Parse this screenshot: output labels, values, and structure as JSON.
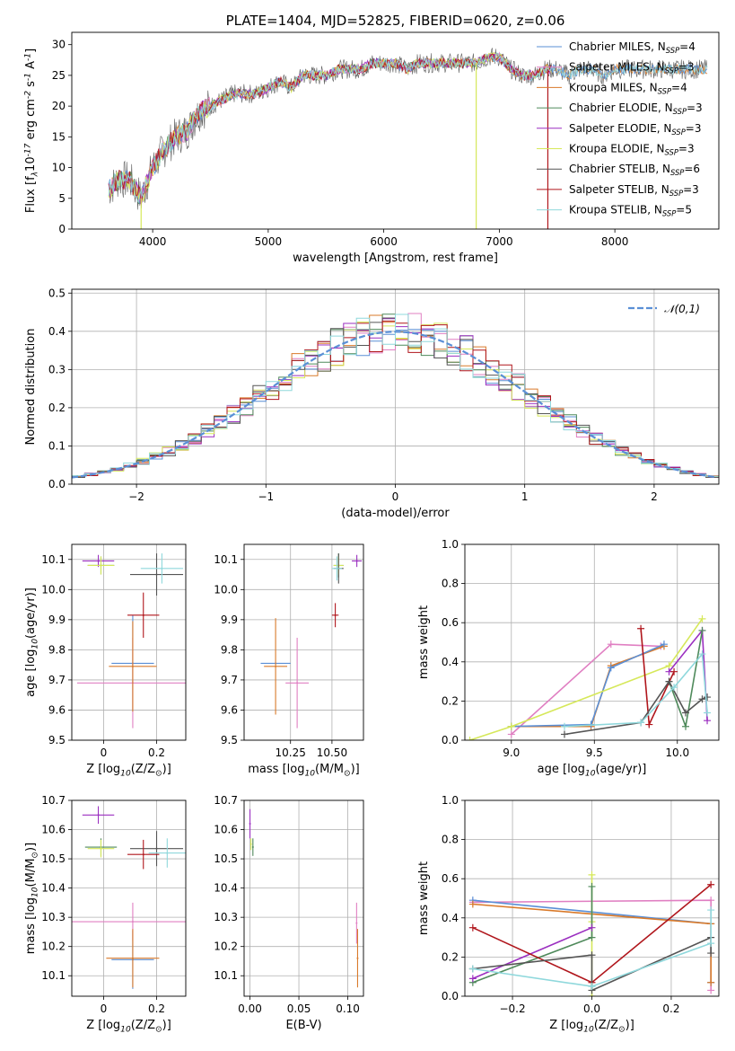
{
  "colors": {
    "Chabrier MILES": "#5a8fd6",
    "Salpeter MILES": "#e07fc2",
    "Kroupa MILES": "#d97a2a",
    "Chabrier ELODIE": "#4f8a5b",
    "Salpeter ELODIE": "#9b2fc0",
    "Kroupa ELODIE": "#d6e85a",
    "Chabrier STELIB": "#555555",
    "Salpeter STELIB": "#b0161c",
    "Kroupa STELIB": "#8fd8dc",
    "gauss": "#5a8fd6"
  },
  "chart_data": [
    {
      "id": "spectrum",
      "type": "line",
      "title": "PLATE=1404, MJD=52825, FIBERID=0620, z=0.06",
      "xlabel": "wavelength [Angstrom, rest frame]",
      "ylabel": "Flux [f$_\\lambda$10$^{-17}$ erg cm$^{-2}$ s$^{-1}$ A$^{-1}$]",
      "xlim": [
        3300,
        8900
      ],
      "ylim": [
        0,
        32
      ],
      "xticks": [
        4000,
        5000,
        6000,
        7000,
        8000
      ],
      "yticks": [
        0,
        5,
        10,
        15,
        20,
        25,
        30
      ],
      "grid": false,
      "legend_position": "right",
      "series": [
        {
          "name": "Chabrier MILES, N$_{SSP}$=4",
          "color_key": "Chabrier MILES"
        },
        {
          "name": "Salpeter MILES, N$_{SSP}$=3",
          "color_key": "Salpeter MILES"
        },
        {
          "name": "Kroupa MILES, N$_{SSP}$=4",
          "color_key": "Kroupa MILES"
        },
        {
          "name": "Chabrier ELODIE, N$_{SSP}$=3",
          "color_key": "Chabrier ELODIE"
        },
        {
          "name": "Salpeter ELODIE, N$_{SSP}$=3",
          "color_key": "Salpeter ELODIE"
        },
        {
          "name": "Kroupa ELODIE, N$_{SSP}$=3",
          "color_key": "Kroupa ELODIE"
        },
        {
          "name": "Chabrier STELIB, N$_{SSP}$=6",
          "color_key": "Chabrier STELIB"
        },
        {
          "name": "Salpeter STELIB, N$_{SSP}$=3",
          "color_key": "Salpeter STELIB"
        },
        {
          "name": "Kroupa STELIB, N$_{SSP}$=5",
          "color_key": "Kroupa STELIB"
        }
      ],
      "continuum": [
        [
          3600,
          6
        ],
        [
          3700,
          8
        ],
        [
          3800,
          8
        ],
        [
          3900,
          5
        ],
        [
          4000,
          10
        ],
        [
          4100,
          13
        ],
        [
          4200,
          15
        ],
        [
          4300,
          16
        ],
        [
          4400,
          19
        ],
        [
          4500,
          20
        ],
        [
          4600,
          21
        ],
        [
          4700,
          22
        ],
        [
          4800,
          22
        ],
        [
          4900,
          22
        ],
        [
          5000,
          23
        ],
        [
          5100,
          24
        ],
        [
          5200,
          23
        ],
        [
          5300,
          25
        ],
        [
          5400,
          25
        ],
        [
          5500,
          25
        ],
        [
          5600,
          26
        ],
        [
          5700,
          26
        ],
        [
          5800,
          26
        ],
        [
          5900,
          27
        ],
        [
          6000,
          27
        ],
        [
          6100,
          27
        ],
        [
          6200,
          26
        ],
        [
          6300,
          27
        ],
        [
          6400,
          27
        ],
        [
          6500,
          27
        ],
        [
          6600,
          27
        ],
        [
          6700,
          27
        ],
        [
          6800,
          27
        ],
        [
          6900,
          28
        ],
        [
          7000,
          28
        ],
        [
          7100,
          26
        ],
        [
          7200,
          25
        ],
        [
          7300,
          25
        ],
        [
          7400,
          26
        ],
        [
          7500,
          26
        ],
        [
          7600,
          25
        ],
        [
          7700,
          26
        ],
        [
          7800,
          26
        ],
        [
          7900,
          25
        ],
        [
          8000,
          26
        ],
        [
          8100,
          26
        ],
        [
          8200,
          26
        ],
        [
          8300,
          26
        ],
        [
          8400,
          26
        ],
        [
          8500,
          26
        ],
        [
          8600,
          26
        ],
        [
          8700,
          26
        ],
        [
          8800,
          26
        ]
      ],
      "spikes": [
        {
          "x": 3900,
          "color_key": "Kroupa ELODIE"
        },
        {
          "x": 6800,
          "color_key": "Kroupa ELODIE"
        },
        {
          "x": 7420,
          "color_key": "Salpeter STELIB"
        }
      ]
    },
    {
      "id": "residuals",
      "type": "bar",
      "xlabel": "(data-model)/error",
      "ylabel": "Normed distribution",
      "xlim": [
        -2.5,
        2.5
      ],
      "ylim": [
        0,
        0.51
      ],
      "xticks": [
        -2,
        -1,
        0,
        1,
        2
      ],
      "yticks": [
        0.0,
        0.1,
        0.2,
        0.3,
        0.4,
        0.5
      ],
      "grid": true,
      "legend_position": "top-right",
      "legend": "$\\mathcal{N}(0,1)$",
      "bin_width": 0.1
    },
    {
      "id": "age_vs_Z",
      "type": "scatter",
      "xlabel": "Z [log$_{10}$(Z/Z$_\\odot$)]",
      "ylabel": "age  [log$_{10}$(age/yr)]",
      "xlim": [
        -0.12,
        0.31
      ],
      "ylim": [
        9.5,
        10.15
      ],
      "xticks": [
        0.0,
        0.2
      ],
      "yticks": [
        9.5,
        9.6,
        9.7,
        9.8,
        9.9,
        10.0,
        10.1
      ],
      "grid": true,
      "points": [
        {
          "model": "Chabrier MILES",
          "x": 0.11,
          "xerr": 0.08,
          "y": 9.755,
          "yerr": 0.16
        },
        {
          "model": "Salpeter MILES",
          "x": 0.11,
          "xerr": 0.21,
          "y": 9.69,
          "yerr": 0.15
        },
        {
          "model": "Kroupa MILES",
          "x": 0.11,
          "xerr": 0.09,
          "y": 9.745,
          "yerr": 0.15
        },
        {
          "model": "Chabrier ELODIE",
          "x": -0.01,
          "xerr": 0.05,
          "y": 10.08,
          "yerr": 0.03
        },
        {
          "model": "Salpeter ELODIE",
          "x": -0.02,
          "xerr": 0.06,
          "y": 10.095,
          "yerr": 0.02
        },
        {
          "model": "Kroupa ELODIE",
          "x": -0.01,
          "xerr": 0.05,
          "y": 10.08,
          "yerr": 0.03
        },
        {
          "model": "Chabrier STELIB",
          "x": 0.2,
          "xerr": 0.1,
          "y": 10.05,
          "yerr": 0.07
        },
        {
          "model": "Salpeter STELIB",
          "x": 0.15,
          "xerr": 0.06,
          "y": 9.915,
          "yerr": 0.075
        },
        {
          "model": "Kroupa STELIB",
          "x": 0.22,
          "xerr": 0.08,
          "y": 10.07,
          "yerr": 0.05
        }
      ]
    },
    {
      "id": "age_vs_mass",
      "type": "scatter",
      "xlabel": "mass [log$_{10}$(M/M$_\\odot$)]",
      "xlim": [
        9.97,
        10.69
      ],
      "ylim": [
        9.5,
        10.15
      ],
      "xticks": [
        10.25,
        10.5
      ],
      "xticklabels": [
        "10.25",
        "10.50"
      ],
      "yticks": [
        9.5,
        9.6,
        9.7,
        9.8,
        9.9,
        10.0,
        10.1
      ],
      "grid": true,
      "points": [
        {
          "model": "Chabrier MILES",
          "x": 10.16,
          "xerr": 0.09,
          "y": 9.755,
          "yerr": 0.0
        },
        {
          "model": "Salpeter MILES",
          "x": 10.29,
          "xerr": 0.07,
          "y": 9.69,
          "yerr": 0.15
        },
        {
          "model": "Kroupa MILES",
          "x": 10.16,
          "xerr": 0.07,
          "y": 9.745,
          "yerr": 0.16
        },
        {
          "model": "Chabrier ELODIE",
          "x": 10.54,
          "xerr": 0.03,
          "y": 10.08,
          "yerr": 0.04
        },
        {
          "model": "Salpeter ELODIE",
          "x": 10.65,
          "xerr": 0.03,
          "y": 10.095,
          "yerr": 0.02
        },
        {
          "model": "Kroupa ELODIE",
          "x": 10.54,
          "xerr": 0.03,
          "y": 10.08,
          "yerr": 0.03
        },
        {
          "model": "Chabrier STELIB",
          "x": 10.54,
          "xerr": 0.03,
          "y": 10.07,
          "yerr": 0.05
        },
        {
          "model": "Salpeter STELIB",
          "x": 10.52,
          "xerr": 0.02,
          "y": 9.915,
          "yerr": 0.04
        },
        {
          "model": "Kroupa STELIB",
          "x": 10.53,
          "xerr": 0.03,
          "y": 10.07,
          "yerr": 0.04
        }
      ]
    },
    {
      "id": "weight_vs_age",
      "type": "line",
      "xlabel": "age  [log$_{10}$(age/yr)]",
      "ylabel": "mass weight",
      "xlim": [
        8.72,
        10.25
      ],
      "ylim": [
        0,
        1.0
      ],
      "xticks": [
        9.0,
        9.5,
        10.0
      ],
      "xticklabels": [
        "9.0",
        "9.5",
        "10.0"
      ],
      "yticks": [
        0.0,
        0.2,
        0.4,
        0.6,
        0.8,
        1.0
      ],
      "grid": true,
      "series": [
        {
          "model": "Salpeter MILES",
          "x": [
            9.0,
            9.6,
            9.9
          ],
          "y": [
            0.03,
            0.49,
            0.48
          ]
        },
        {
          "model": "Kroupa MILES",
          "x": [
            9.0,
            9.48,
            9.6,
            9.92
          ],
          "y": [
            0.07,
            0.07,
            0.38,
            0.48
          ]
        },
        {
          "model": "Chabrier MILES",
          "x": [
            9.0,
            9.48,
            9.6,
            9.92
          ],
          "y": [
            0.07,
            0.08,
            0.37,
            0.49
          ]
        },
        {
          "model": "Kroupa ELODIE",
          "x": [
            8.75,
            9.0,
            9.95,
            10.15
          ],
          "y": [
            0.0,
            0.07,
            0.38,
            0.62
          ]
        },
        {
          "model": "Salpeter ELODIE",
          "x": [
            9.95,
            10.15,
            10.18
          ],
          "y": [
            0.35,
            0.56,
            0.1
          ]
        },
        {
          "model": "Chabrier ELODIE",
          "x": [
            9.95,
            10.05,
            10.15
          ],
          "y": [
            0.3,
            0.07,
            0.56
          ]
        },
        {
          "model": "Salpeter STELIB",
          "x": [
            9.78,
            9.83,
            9.98
          ],
          "y": [
            0.57,
            0.08,
            0.35
          ]
        },
        {
          "model": "Chabrier STELIB",
          "x": [
            9.32,
            9.78,
            9.95,
            10.05,
            10.15,
            10.18
          ],
          "y": [
            0.03,
            0.09,
            0.3,
            0.14,
            0.21,
            0.22
          ]
        },
        {
          "model": "Kroupa STELIB",
          "x": [
            9.32,
            9.78,
            9.98,
            10.15,
            10.18
          ],
          "y": [
            0.07,
            0.09,
            0.27,
            0.44,
            0.14
          ]
        }
      ]
    },
    {
      "id": "mass_vs_Z",
      "type": "scatter",
      "xlabel": "Z [log$_{10}$(Z/Z$_\\odot$)]",
      "ylabel": "mass [log$_{10}$(M/M$_\\odot$)]",
      "xlim": [
        -0.12,
        0.31
      ],
      "ylim": [
        10.03,
        10.7
      ],
      "xticks": [
        0.0,
        0.2
      ],
      "yticks": [
        10.1,
        10.2,
        10.3,
        10.4,
        10.5,
        10.6,
        10.7
      ],
      "grid": true,
      "points": [
        {
          "model": "Chabrier MILES",
          "x": 0.11,
          "xerr": 0.08,
          "y": 10.155,
          "yerr": 0.1
        },
        {
          "model": "Salpeter MILES",
          "x": 0.11,
          "xerr": 0.24,
          "y": 10.285,
          "yerr": 0.065
        },
        {
          "model": "Kroupa MILES",
          "x": 0.11,
          "xerr": 0.1,
          "y": 10.16,
          "yerr": 0.1
        },
        {
          "model": "Chabrier ELODIE",
          "x": -0.01,
          "xerr": 0.06,
          "y": 10.54,
          "yerr": 0.03
        },
        {
          "model": "Salpeter ELODIE",
          "x": -0.02,
          "xerr": 0.06,
          "y": 10.65,
          "yerr": 0.03
        },
        {
          "model": "Kroupa ELODIE",
          "x": -0.01,
          "xerr": 0.05,
          "y": 10.535,
          "yerr": 0.03
        },
        {
          "model": "Chabrier STELIB",
          "x": 0.2,
          "xerr": 0.1,
          "y": 10.535,
          "yerr": 0.06
        },
        {
          "model": "Salpeter STELIB",
          "x": 0.15,
          "xerr": 0.06,
          "y": 10.515,
          "yerr": 0.05
        },
        {
          "model": "Kroupa STELIB",
          "x": 0.24,
          "xerr": 0.07,
          "y": 10.52,
          "yerr": 0.05
        }
      ]
    },
    {
      "id": "mass_vs_EBV",
      "type": "scatter",
      "xlabel": "E(B-V)",
      "xlim": [
        -0.006,
        0.116
      ],
      "ylim": [
        10.03,
        10.7
      ],
      "xticks": [
        0.0,
        0.05,
        0.1
      ],
      "xticklabels": [
        "0.00",
        "0.05",
        "0.10"
      ],
      "yticks": [
        10.1,
        10.2,
        10.3,
        10.4,
        10.5,
        10.6,
        10.7
      ],
      "grid": true,
      "points": [
        {
          "model": "Salpeter ELODIE",
          "x": 0.0,
          "y": 10.62,
          "yerr": 0.05
        },
        {
          "model": "Chabrier ELODIE",
          "x": 0.003,
          "y": 10.54,
          "yerr": 0.03
        },
        {
          "model": "Kroupa ELODIE",
          "x": 0.001,
          "y": 10.55,
          "yerr": 0.02
        },
        {
          "model": "Salpeter MILES",
          "x": 0.109,
          "y": 10.28,
          "yerr": 0.07
        },
        {
          "model": "Kroupa MILES",
          "x": 0.11,
          "y": 10.16,
          "yerr": 0.1
        }
      ]
    },
    {
      "id": "weight_vs_Z",
      "type": "line",
      "xlabel": "Z [log$_{10}$(Z/Z$_\\odot$)]",
      "ylabel": "mass weight",
      "xlim": [
        -0.32,
        0.32
      ],
      "ylim": [
        0,
        1.0
      ],
      "xticks": [
        -0.2,
        0.0,
        0.2
      ],
      "xticklabels": [
        "−0.2",
        "0.0",
        "0.2"
      ],
      "yticks": [
        0.0,
        0.2,
        0.4,
        0.6,
        0.8,
        1.0
      ],
      "grid": true,
      "series": [
        {
          "model": "Salpeter MILES",
          "x": [
            -0.3,
            0.3,
            0.3
          ],
          "y": [
            0.48,
            0.49,
            0.03
          ]
        },
        {
          "model": "Chabrier MILES",
          "x": [
            -0.3,
            0.3,
            0.3
          ],
          "y": [
            0.49,
            0.37,
            0.07
          ]
        },
        {
          "model": "Kroupa MILES",
          "x": [
            -0.3,
            0.3,
            0.3
          ],
          "y": [
            0.47,
            0.37,
            0.07
          ]
        },
        {
          "model": "Kroupa ELODIE",
          "x": [
            0.0,
            0.0,
            0.0
          ],
          "y": [
            0.0,
            0.38,
            0.62
          ]
        },
        {
          "model": "Chabrier ELODIE",
          "x": [
            -0.3,
            0.0,
            0.0
          ],
          "y": [
            0.07,
            0.3,
            0.56
          ]
        },
        {
          "model": "Salpeter ELODIE",
          "x": [
            -0.3,
            0.0
          ],
          "y": [
            0.09,
            0.35
          ]
        },
        {
          "model": "Salpeter STELIB",
          "x": [
            -0.3,
            0.0,
            0.3
          ],
          "y": [
            0.35,
            0.07,
            0.57
          ]
        },
        {
          "model": "Chabrier STELIB",
          "x": [
            -0.3,
            0.0,
            0.0,
            0.3,
            0.3
          ],
          "y": [
            0.14,
            0.21,
            0.03,
            0.3,
            0.22
          ]
        },
        {
          "model": "Kroupa STELIB",
          "x": [
            -0.3,
            0.0,
            0.3,
            0.3
          ],
          "y": [
            0.14,
            0.05,
            0.27,
            0.44
          ]
        }
      ]
    }
  ]
}
